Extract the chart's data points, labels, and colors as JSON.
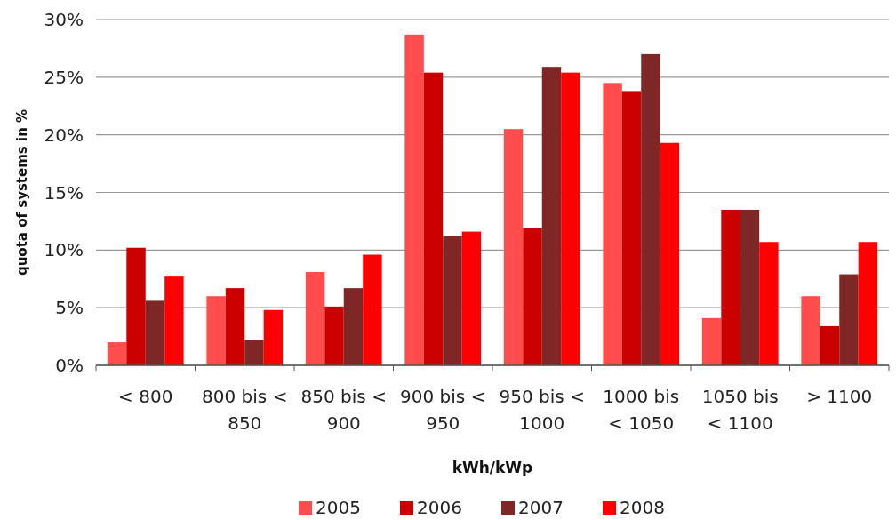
{
  "chart_data": {
    "type": "bar",
    "xlabel": "kWh/kWp",
    "ylabel": "quota of systems in %",
    "categories": [
      "< 800",
      "800 bis < 850",
      "850 bis < 900",
      "900 bis < 950",
      "950 bis < 1000",
      "1000 bis < 1050",
      "1050 bis < 1100",
      "> 1100"
    ],
    "series": [
      {
        "name": "2005",
        "color": "#ff4d4d",
        "values": [
          2.0,
          6.0,
          8.1,
          28.7,
          20.5,
          24.5,
          4.1,
          6.0
        ]
      },
      {
        "name": "2006",
        "color": "#cc0000",
        "values": [
          10.2,
          6.7,
          5.1,
          25.4,
          11.9,
          23.8,
          13.5,
          3.4
        ]
      },
      {
        "name": "2007",
        "color": "#7f2727",
        "values": [
          5.6,
          2.2,
          6.7,
          11.2,
          25.9,
          27.0,
          13.5,
          7.9
        ]
      },
      {
        "name": "2008",
        "color": "#ff0000",
        "values": [
          7.7,
          4.8,
          9.6,
          11.6,
          25.4,
          19.3,
          10.7,
          10.7
        ]
      }
    ],
    "ylim": [
      0,
      30
    ],
    "yticks": [
      {
        "value": 0,
        "label": "0%"
      },
      {
        "value": 5,
        "label": "5%"
      },
      {
        "value": 10,
        "label": "10%"
      },
      {
        "value": 15,
        "label": "15%"
      },
      {
        "value": 20,
        "label": "20%"
      },
      {
        "value": 25,
        "label": "25%"
      },
      {
        "value": 30,
        "label": "30%"
      }
    ],
    "grid": "y",
    "legend": "bottom"
  }
}
